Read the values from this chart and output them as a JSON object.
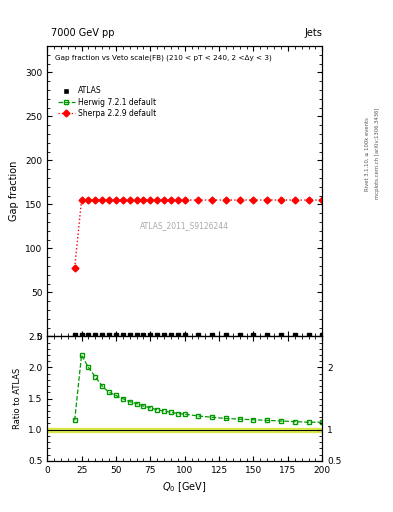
{
  "title_left": "7000 GeV pp",
  "title_right": "Jets",
  "plot_title": "Gap fraction vs Veto scale(FB) (210 < pT < 240, 2 <Δy < 3)",
  "xlabel": "$Q_0$ [GeV]",
  "ylabel_main": "Gap fraction",
  "ylabel_ratio": "Ratio to ATLAS",
  "right_label_top": "Rivet 3.1.10, ≥ 100k events",
  "right_label_bot": "mcplots.cern.ch [arXiv:1306.3436]",
  "watermark": "ATLAS_2011_S9126244",
  "xlim": [
    0,
    200
  ],
  "ylim_main": [
    0,
    330
  ],
  "ylim_ratio": [
    0.5,
    2.5
  ],
  "atlas_x": [
    20,
    25,
    30,
    35,
    40,
    45,
    50,
    55,
    60,
    65,
    70,
    75,
    80,
    85,
    90,
    95,
    100,
    110,
    120,
    130,
    140,
    150,
    160,
    170,
    180,
    190,
    200
  ],
  "atlas_main_y": [
    2.0,
    2.0,
    2.0,
    2.0,
    2.0,
    2.0,
    2.0,
    2.0,
    2.0,
    2.0,
    2.0,
    2.0,
    2.0,
    2.0,
    2.0,
    2.0,
    2.0,
    2.0,
    2.0,
    2.0,
    2.0,
    2.0,
    2.0,
    2.0,
    2.0,
    2.0,
    2.0
  ],
  "herwig_ratio_y": [
    1.15,
    2.2,
    2.0,
    1.85,
    1.7,
    1.6,
    1.55,
    1.5,
    1.45,
    1.42,
    1.38,
    1.35,
    1.32,
    1.3,
    1.28,
    1.26,
    1.25,
    1.22,
    1.2,
    1.18,
    1.17,
    1.16,
    1.15,
    1.14,
    1.13,
    1.12,
    1.12
  ],
  "sherpa_main_y": [
    78,
    155,
    155,
    155,
    155,
    155,
    155,
    155,
    155,
    155,
    155,
    155,
    155,
    155,
    155,
    155,
    155,
    155,
    155,
    155,
    155,
    155,
    155,
    155,
    155,
    155,
    155
  ],
  "color_atlas": "#000000",
  "color_herwig": "#009900",
  "color_sherpa": "#ff0000",
  "color_atlas_band_fill": "#ccdd00",
  "color_atlas_band_line": "#88aa00",
  "bg_color": "#ffffff",
  "yticks_main": [
    0,
    50,
    100,
    150,
    200,
    250,
    300
  ],
  "yticks_ratio": [
    0.5,
    1.0,
    1.5,
    2.0,
    2.5
  ],
  "atlas_band_lower": 0.97,
  "atlas_band_upper": 1.03
}
